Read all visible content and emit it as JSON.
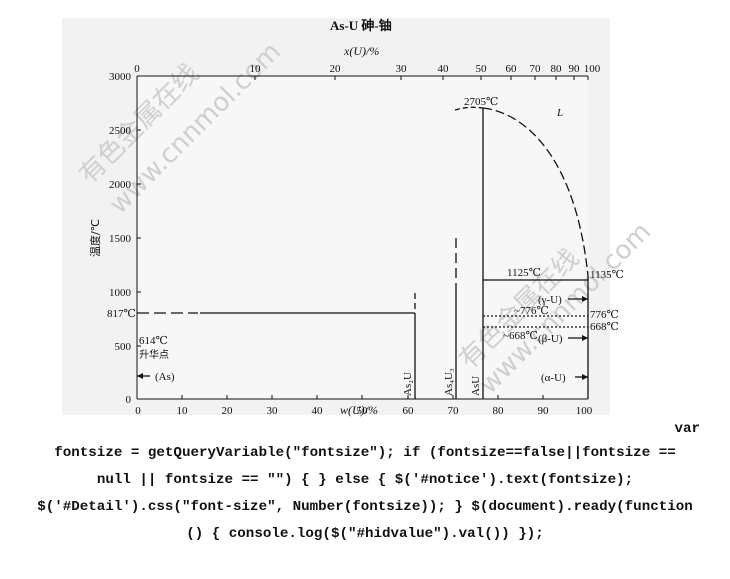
{
  "diagram": {
    "title": "As-U  砷-铀",
    "top_axis_label": "x(U)/%",
    "bottom_axis_label": "w(U)/%",
    "y_axis_label": "温度/℃",
    "y_ticks": [
      "3000",
      "2500",
      "2000",
      "1500",
      "1000",
      "500",
      "0"
    ],
    "top_ticks": [
      "0",
      "10",
      "20",
      "30",
      "40",
      "50",
      "60",
      "70",
      "80",
      "90",
      "100"
    ],
    "bottom_ticks": [
      "0",
      "10",
      "20",
      "30",
      "40",
      "50",
      "60",
      "70",
      "80",
      "90",
      "100"
    ],
    "element_left": "As",
    "element_right": "U",
    "labels": {
      "liquid": "L",
      "melt_2705": "2705℃",
      "temp_1125": "1125℃",
      "temp_1135": "1135℃",
      "temp_817": "817℃",
      "temp_614": "614℃",
      "sublimation": "升华点",
      "as_phase": "(As)",
      "temp_776_in": "~776℃",
      "temp_668_in": "~668℃",
      "temp_776_right": "776℃",
      "temp_668_right": "668℃",
      "gamma_u": "(γ-U)",
      "beta_u": "(β-U)",
      "alpha_u": "(α-U)",
      "as2u": "As₂U",
      "as4u3": "As₄U₃",
      "asu": "AsU"
    },
    "watermarks": [
      "有色金属在线",
      "www.cnnmol.com"
    ],
    "colors": {
      "line": "#111111",
      "plot_bg": "#f2f2f2",
      "watermark": "#cfcfcf"
    }
  },
  "code": {
    "line1": "var",
    "line2": "fontsize = getQueryVariable(\"fontsize\"); if (fontsize==false||fontsize ==",
    "line3": "null || fontsize == \"\") { } else { $('#notice').text(fontsize);",
    "line4": "$('#Detail').css(\"font-size\", Number(fontsize)); } $(document).ready(function",
    "line5": "() { console.log($(\"#hidvalue\").val()) });"
  }
}
